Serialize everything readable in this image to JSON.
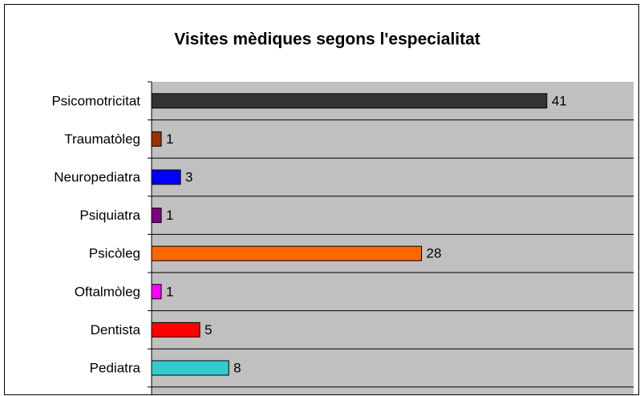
{
  "chart_data": {
    "type": "bar",
    "orientation": "horizontal",
    "title": "Visites mèdiques segons l'especialitat",
    "categories": [
      "Psicomotricitat",
      "Traumatòleg",
      "Neuropediatra",
      "Psiquiatra",
      "Psicòleg",
      "Oftalmòleg",
      "Dentista",
      "Pediatra"
    ],
    "values": [
      41,
      1,
      3,
      1,
      28,
      1,
      5,
      8
    ],
    "colors": [
      "#333333",
      "#993300",
      "#0000ff",
      "#800080",
      "#ff6600",
      "#ff00ff",
      "#ff0000",
      "#33cccc"
    ],
    "xlim": [
      0,
      50
    ]
  }
}
